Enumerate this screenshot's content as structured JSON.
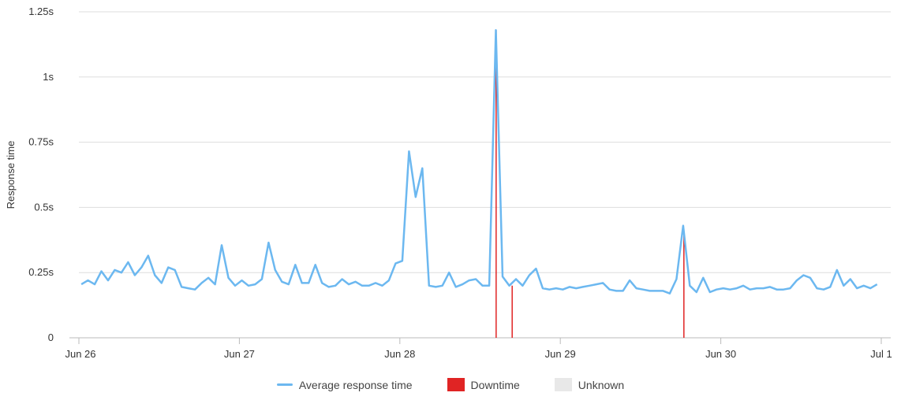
{
  "colors": {
    "avg": "#6cb8f0",
    "downtime": "#e02424",
    "unknown": "#e8e8e8",
    "grid": "#dddddd",
    "axis": "#bbbbbb"
  },
  "chart_data": {
    "type": "line",
    "ylabel": "Response time",
    "yticks": [
      {
        "v": 0,
        "label": "0"
      },
      {
        "v": 0.25,
        "label": "0.25s"
      },
      {
        "v": 0.5,
        "label": "0.5s"
      },
      {
        "v": 0.75,
        "label": "0.75s"
      },
      {
        "v": 1,
        "label": "1s"
      },
      {
        "v": 1.25,
        "label": "1.25s"
      }
    ],
    "ylim": [
      0,
      1.25
    ],
    "xlim": [
      0,
      5.03
    ],
    "xticks": [
      {
        "d": 0,
        "label": "Jun 26"
      },
      {
        "d": 1,
        "label": "Jun 27"
      },
      {
        "d": 2,
        "label": "Jun 28"
      },
      {
        "d": 3,
        "label": "Jun 29"
      },
      {
        "d": 4,
        "label": "Jun 30"
      },
      {
        "d": 5,
        "label": "Jul 1"
      }
    ],
    "legend": [
      "Average response time",
      "Downtime",
      "Unknown"
    ],
    "series": [
      {
        "name": "Average response time",
        "step_days": 0.04167,
        "start_day": 0.015,
        "values": [
          0.205,
          0.22,
          0.205,
          0.255,
          0.22,
          0.26,
          0.25,
          0.29,
          0.24,
          0.27,
          0.315,
          0.24,
          0.21,
          0.27,
          0.26,
          0.195,
          0.19,
          0.185,
          0.21,
          0.23,
          0.205,
          0.355,
          0.23,
          0.2,
          0.22,
          0.2,
          0.205,
          0.225,
          0.365,
          0.26,
          0.215,
          0.205,
          0.28,
          0.21,
          0.21,
          0.28,
          0.21,
          0.195,
          0.2,
          0.225,
          0.205,
          0.215,
          0.2,
          0.2,
          0.21,
          0.2,
          0.22,
          0.285,
          0.295,
          0.715,
          0.54,
          0.65,
          0.2,
          0.195,
          0.2,
          0.25,
          0.195,
          0.205,
          0.22,
          0.225,
          0.2,
          0.2,
          1.18,
          0.235,
          0.2,
          0.225,
          0.2,
          0.24,
          0.265,
          0.19,
          0.185,
          0.19,
          0.185,
          0.195,
          0.19,
          0.195,
          0.2,
          0.205,
          0.21,
          0.185,
          0.18,
          0.18,
          0.22,
          0.19,
          0.185,
          0.18,
          0.18,
          0.18,
          0.17,
          0.225,
          0.43,
          0.2,
          0.175,
          0.23,
          0.175,
          0.185,
          0.19,
          0.185,
          0.19,
          0.2,
          0.185,
          0.19,
          0.19,
          0.195,
          0.185,
          0.185,
          0.19,
          0.22,
          0.24,
          0.23,
          0.19,
          0.185,
          0.195,
          0.26,
          0.2,
          0.225,
          0.19,
          0.2,
          0.19,
          0.205
        ]
      },
      {
        "name": "Downtime",
        "spikes": [
          {
            "x": 2.6,
            "y": 1.18
          },
          {
            "x": 2.7,
            "y": 0.2
          },
          {
            "x": 3.77,
            "y": 0.4
          }
        ]
      }
    ]
  }
}
